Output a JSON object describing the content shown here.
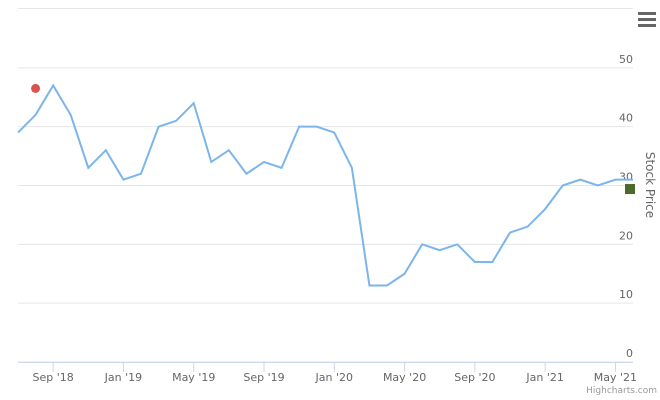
{
  "chart_data": {
    "type": "line",
    "y_axis_title": "Stock Price",
    "credits": "Highcharts.com",
    "x": [
      "2018-07",
      "2018-08",
      "2018-09",
      "2018-10",
      "2018-11",
      "2018-12",
      "2019-01",
      "2019-02",
      "2019-03",
      "2019-04",
      "2019-05",
      "2019-06",
      "2019-07",
      "2019-08",
      "2019-09",
      "2019-10",
      "2019-11",
      "2019-12",
      "2020-01",
      "2020-02",
      "2020-03",
      "2020-04",
      "2020-05",
      "2020-06",
      "2020-07",
      "2020-08",
      "2020-09",
      "2020-10",
      "2020-11",
      "2020-12",
      "2021-01",
      "2021-02",
      "2021-03",
      "2021-04",
      "2021-05",
      "2021-06"
    ],
    "series": [
      {
        "color": "#7cb5ec",
        "values": [
          39,
          42,
          47,
          42,
          33,
          36,
          31,
          32,
          40,
          41,
          44,
          34,
          36,
          32,
          34,
          33,
          40,
          40,
          39,
          33,
          13,
          13,
          15,
          20,
          19,
          20,
          17,
          17,
          22,
          23,
          26,
          30,
          31,
          30,
          31,
          31
        ]
      }
    ],
    "high_marker": {
      "x": "2018-08",
      "value": 46.5,
      "color": "#d9534f"
    },
    "last_price": {
      "value": 29.4,
      "color": "#4a6b2a"
    },
    "xlim": [
      "2018-07",
      "2021-06"
    ],
    "xticks": [
      {
        "value": "2018-09",
        "label": "Sep '18"
      },
      {
        "value": "2019-01",
        "label": "Jan '19"
      },
      {
        "value": "2019-05",
        "label": "May '19"
      },
      {
        "value": "2019-09",
        "label": "Sep '19"
      },
      {
        "value": "2020-01",
        "label": "Jan '20"
      },
      {
        "value": "2020-05",
        "label": "May '20"
      },
      {
        "value": "2020-09",
        "label": "Sep '20"
      },
      {
        "value": "2021-01",
        "label": "Jan '21"
      },
      {
        "value": "2021-05",
        "label": "May '21"
      }
    ],
    "ylim": [
      0,
      60
    ],
    "yticks": [
      0,
      10,
      20,
      30,
      40,
      50
    ],
    "grid": true
  }
}
